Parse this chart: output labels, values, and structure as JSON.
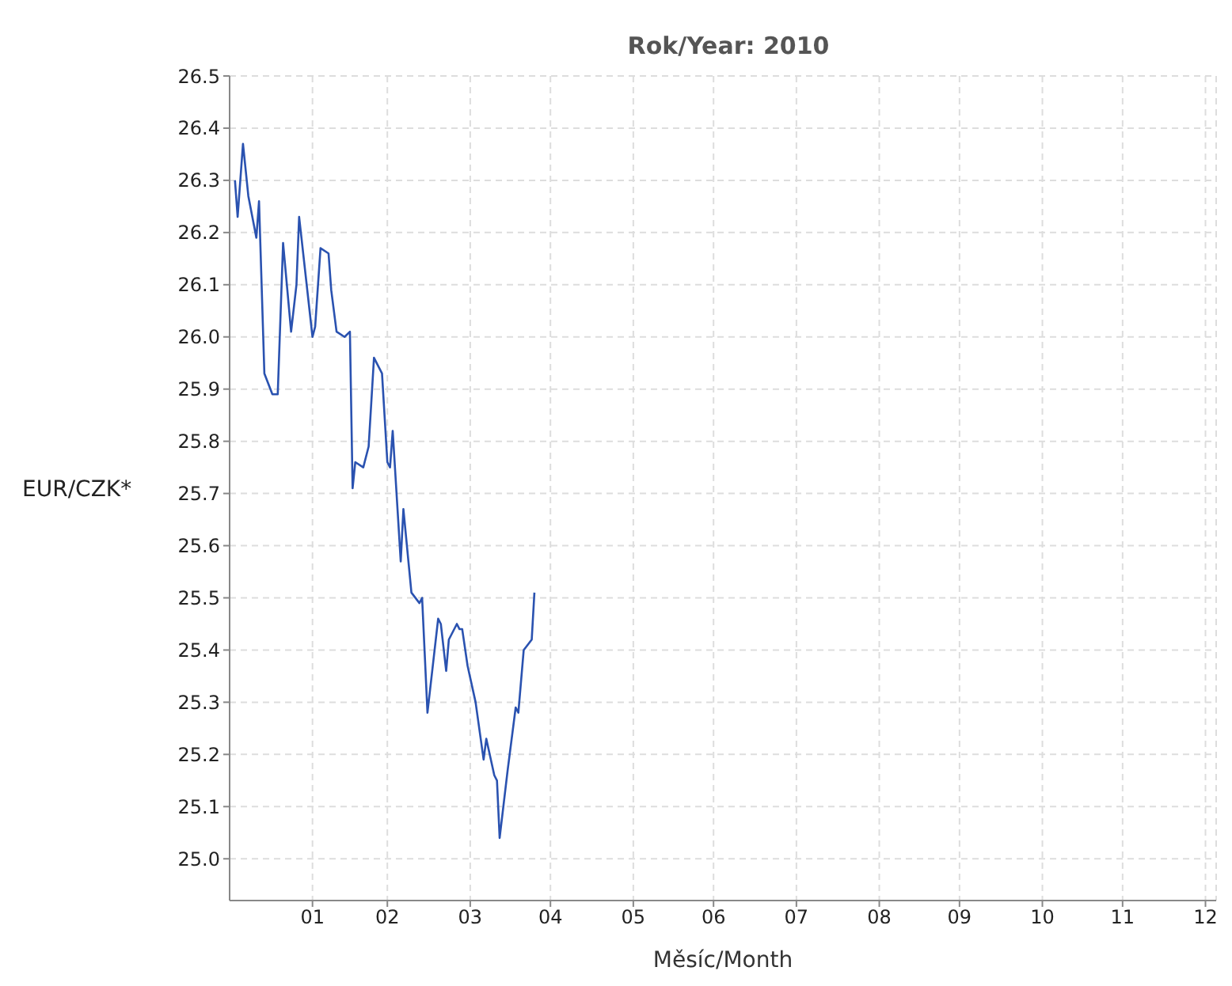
{
  "chart_data": {
    "type": "line",
    "title": "Rok/Year: 2010",
    "xlabel": "Měsíc/Month",
    "ylabel": "EUR/CZK*",
    "x": [
      "2010-01-03",
      "2010-01-04",
      "2010-01-06",
      "2010-01-08",
      "2010-01-11",
      "2010-01-12",
      "2010-01-14",
      "2010-01-17",
      "2010-01-19",
      "2010-01-21",
      "2010-01-24",
      "2010-01-26",
      "2010-01-27",
      "2010-02-01",
      "2010-02-02",
      "2010-02-04",
      "2010-02-07",
      "2010-02-08",
      "2010-02-10",
      "2010-02-13",
      "2010-02-15",
      "2010-02-16",
      "2010-02-17",
      "2010-02-20",
      "2010-02-22",
      "2010-02-24",
      "2010-02-27",
      "2010-03-01",
      "2010-03-02",
      "2010-03-03",
      "2010-03-06",
      "2010-03-07",
      "2010-03-10",
      "2010-03-13",
      "2010-03-14",
      "2010-03-16",
      "2010-03-20",
      "2010-03-21",
      "2010-03-23",
      "2010-03-24",
      "2010-03-27",
      "2010-03-28",
      "2010-03-29",
      "2010-03-31",
      "2010-04-03",
      "2010-04-06",
      "2010-04-07",
      "2010-04-10",
      "2010-04-11",
      "2010-04-12",
      "2010-04-15",
      "2010-04-18",
      "2010-04-19",
      "2010-04-21",
      "2010-04-24",
      "2010-04-25"
    ],
    "series": [
      {
        "color": "#2a52b0",
        "values": [
          26.3,
          26.23,
          26.37,
          26.27,
          26.19,
          26.26,
          25.93,
          25.89,
          25.89,
          26.18,
          26.01,
          26.1,
          26.23,
          26.0,
          26.02,
          26.17,
          26.16,
          26.09,
          26.01,
          26.0,
          26.01,
          25.71,
          25.76,
          25.75,
          25.79,
          25.96,
          25.93,
          25.76,
          25.75,
          25.82,
          25.57,
          25.67,
          25.51,
          25.49,
          25.5,
          25.28,
          25.46,
          25.45,
          25.36,
          25.42,
          25.45,
          25.44,
          25.44,
          25.37,
          25.3,
          25.19,
          25.23,
          25.16,
          25.15,
          25.04,
          25.17,
          25.29,
          25.28,
          25.4,
          25.42,
          25.51
        ]
      }
    ],
    "xlim": [
      "2010-01-01",
      "2011-01-05"
    ],
    "xticks": [
      {
        "value": "2010-02-01",
        "label": "01"
      },
      {
        "value": "2010-03-01",
        "label": "02"
      },
      {
        "value": "2010-04-01",
        "label": "03"
      },
      {
        "value": "2010-05-01",
        "label": "04"
      },
      {
        "value": "2010-06-01",
        "label": "05"
      },
      {
        "value": "2010-07-01",
        "label": "06"
      },
      {
        "value": "2010-08-01",
        "label": "07"
      },
      {
        "value": "2010-09-01",
        "label": "08"
      },
      {
        "value": "2010-10-01",
        "label": "09"
      },
      {
        "value": "2010-11-01",
        "label": "10"
      },
      {
        "value": "2010-12-01",
        "label": "11"
      },
      {
        "value": "2011-01-01",
        "label": "12"
      }
    ],
    "ylim": [
      24.92,
      26.5
    ],
    "yticks": [
      {
        "value": 25,
        "label": "25.0"
      },
      25.1,
      25.2,
      25.3,
      25.4,
      {
        "value": 25.5,
        "label": "25.5"
      },
      25.6,
      25.7,
      25.8,
      25.9,
      {
        "value": 26,
        "label": "26.0"
      },
      26.1,
      26.2,
      26.3,
      26.4,
      26.5
    ],
    "grid": true,
    "marker": "none",
    "line_style": "solid"
  }
}
